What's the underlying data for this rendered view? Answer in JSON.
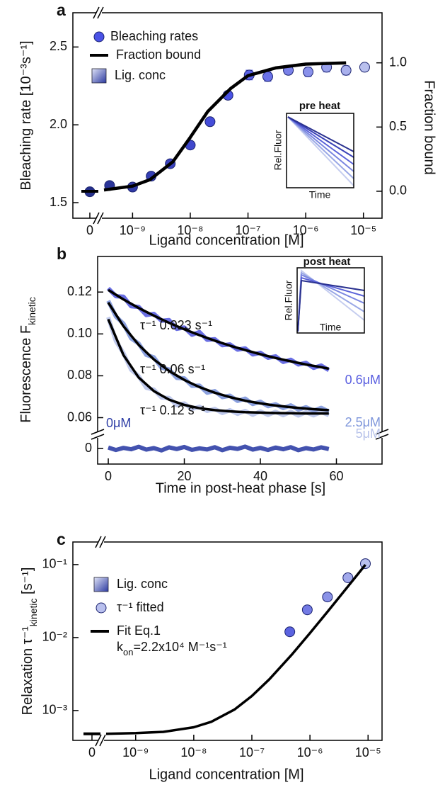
{
  "chart_data": [
    {
      "type": "scatter",
      "panel_label": "a",
      "xlog": true,
      "xlabel": "Ligand concentration [M]",
      "ylabel": [
        "Bleaching rate [10⁻³s⁻¹]"
      ],
      "y2label": "Fraction bound",
      "colorbar_label": "Lig. conc",
      "inset": {
        "title": "pre heat",
        "ylabel": "Rel.Fluor",
        "xlabel": "Time"
      },
      "xlim": [
        0,
        2.1e-05
      ],
      "xbreak": [
        0,
        3.2e-10
      ],
      "xticks": [
        0,
        {
          "value": 1e-09,
          "label": "10⁻⁹"
        },
        {
          "value": 1e-08,
          "label": "10⁻⁸"
        },
        {
          "value": 1e-07,
          "label": "10⁻⁷"
        },
        {
          "value": 1e-06,
          "label": "10⁻⁶"
        },
        {
          "value": 1e-05,
          "label": "10⁻⁵"
        }
      ],
      "ylim": [
        1.4,
        2.72
      ],
      "yticks": [
        1.5,
        {
          "value": 2,
          "label": "2.0"
        },
        2.5
      ],
      "y2lim": [
        -0.21,
        1.39
      ],
      "y2ticks": [
        {
          "value": 0,
          "label": "0.0"
        },
        0.5,
        {
          "value": 1,
          "label": "1.0"
        }
      ],
      "series": [
        {
          "name": "Bleaching rates",
          "type": "scatter",
          "color_scale": [
            "#26308c",
            "#4a52e6",
            "#b9c0ee"
          ],
          "x": [
            0,
            4e-10,
            1e-09,
            2.1e-09,
            4.5e-09,
            1e-08,
            2.2e-08,
            4.5e-08,
            1.05e-07,
            2.2e-07,
            5e-07,
            1.1e-06,
            2.3e-06,
            5e-06,
            1.05e-05
          ],
          "values": [
            1.57,
            1.61,
            1.6,
            1.67,
            1.75,
            1.87,
            2.02,
            2.19,
            2.32,
            2.31,
            2.35,
            2.34,
            2.37,
            2.35,
            2.37
          ],
          "errors": [
            0.02,
            0.015,
            0.015,
            0.01,
            0.01,
            0.01,
            0.01,
            0.01,
            0.03,
            0.03,
            0.025,
            0.03,
            0.03,
            0.03,
            0.02
          ]
        },
        {
          "name": "Fraction bound",
          "type": "line",
          "color": "#000000",
          "axis": "y2",
          "x": [
            0,
            3.2e-10,
            1e-09,
            2e-09,
            5e-09,
            1e-08,
            2e-08,
            5e-08,
            1e-07,
            3e-07,
            1e-06,
            5e-06
          ],
          "values": [
            0.0,
            0.01,
            0.04,
            0.09,
            0.23,
            0.42,
            0.62,
            0.8,
            0.9,
            0.96,
            0.99,
            1.0
          ]
        }
      ]
    },
    {
      "type": "line",
      "panel_label": "b",
      "xlabel": "Time in post-heat phase [s]",
      "ylabel": [
        "Fluorescence F",
        "kinetic"
      ],
      "inset": {
        "title": "post heat",
        "ylabel": "Rel.Fluor",
        "xlabel": "Time"
      },
      "annotations": [
        "τ⁻¹ 0.023 s⁻¹",
        "τ⁻¹ 0.06 s⁻¹",
        "τ⁻¹ 0.12 s⁻¹"
      ],
      "xlim": [
        -2.8,
        72
      ],
      "xticks": [
        0,
        20,
        40,
        60
      ],
      "ylim": [
        -0.0083,
        0.137
      ],
      "ybreak": [
        0.0053,
        0.0534
      ],
      "yticks": [
        0,
        0.06,
        0.08,
        {
          "value": 0.1,
          "label": "0.10"
        },
        0.12
      ],
      "series": [
        {
          "name": "0μM",
          "type": "trace",
          "color": "#2f3fa6",
          "x": [
            0,
            2,
            4,
            6,
            8,
            10,
            12,
            14,
            16,
            18,
            20,
            22,
            24,
            26,
            28,
            30,
            32,
            34,
            36,
            38,
            40,
            42,
            44,
            46,
            48,
            50,
            52,
            54,
            56,
            58
          ],
          "values": [
            0.0005,
            -0.0008,
            0.0003,
            -0.0004,
            0.0009,
            -0.0006,
            0.0002,
            -0.001,
            0.0006,
            -0.0003,
            0.0008,
            -0.0007,
            0.0001,
            -0.0005,
            0.0007,
            -0.0009,
            0.0004,
            -0.0002,
            0.001,
            -0.0006,
            0.0003,
            -0.0008,
            0.0005,
            -0.0004,
            0.0007,
            -0.0009,
            0.0002,
            -0.0005,
            0.0006,
            -0.0003
          ]
        },
        {
          "name": "0.6μM",
          "type": "trace",
          "color": "#5a5fe0",
          "x": [
            0,
            2,
            4,
            6,
            8,
            10,
            12,
            14,
            16,
            18,
            20,
            22,
            24,
            26,
            28,
            30,
            32,
            34,
            36,
            38,
            40,
            42,
            44,
            46,
            48,
            50,
            52,
            54,
            56,
            58
          ],
          "values": [
            0.1218,
            0.118,
            0.1178,
            0.1132,
            0.1129,
            0.109,
            0.1096,
            0.1063,
            0.1066,
            0.1024,
            0.1031,
            0.0996,
            0.1009,
            0.0972,
            0.0975,
            0.0946,
            0.095,
            0.0925,
            0.0931,
            0.0902,
            0.091,
            0.0886,
            0.0893,
            0.0866,
            0.0877,
            0.0854,
            0.0862,
            0.0838,
            0.0849,
            0.0827
          ]
        },
        {
          "name": "2.5μM",
          "type": "trace",
          "color": "#7f97db",
          "x": [
            0,
            2,
            4,
            6,
            8,
            10,
            12,
            14,
            16,
            18,
            20,
            22,
            24,
            26,
            28,
            30,
            32,
            34,
            36,
            38,
            40,
            42,
            44,
            46,
            48,
            50,
            52,
            54,
            56,
            58
          ],
          "values": [
            0.1158,
            0.1083,
            0.1049,
            0.0979,
            0.0954,
            0.09,
            0.0888,
            0.0839,
            0.083,
            0.079,
            0.0788,
            0.0752,
            0.0753,
            0.0719,
            0.0727,
            0.0698,
            0.0705,
            0.068,
            0.0691,
            0.0665,
            0.0676,
            0.0655,
            0.0664,
            0.0646,
            0.0659,
            0.0638,
            0.065,
            0.0633,
            0.0647,
            0.0629
          ]
        },
        {
          "name": "5μM",
          "type": "trace",
          "color": "#b8c3ea",
          "x": [
            0,
            2,
            4,
            6,
            8,
            10,
            12,
            14,
            16,
            18,
            20,
            22,
            24,
            26,
            28,
            30,
            32,
            34,
            36,
            38,
            40,
            42,
            44,
            46,
            48,
            50,
            52,
            54,
            56,
            58
          ],
          "values": [
            0.108,
            0.0966,
            0.0908,
            0.0829,
            0.0798,
            0.0743,
            0.0734,
            0.0696,
            0.0694,
            0.066,
            0.0668,
            0.0642,
            0.0652,
            0.0632,
            0.0642,
            0.0622,
            0.0636,
            0.0618,
            0.0632,
            0.0614,
            0.063,
            0.0613,
            0.0628,
            0.0612,
            0.0628,
            0.061,
            0.0626,
            0.0611,
            0.0627,
            0.0612
          ]
        },
        {
          "type": "line",
          "color": "#000000",
          "x": [
            0,
            4,
            8,
            12,
            16,
            20,
            24,
            28,
            32,
            36,
            40,
            44,
            48,
            52,
            56,
            58
          ],
          "values": [
            0.121,
            0.1165,
            0.1124,
            0.1087,
            0.1053,
            0.1022,
            0.0994,
            0.0968,
            0.0944,
            0.0923,
            0.0903,
            0.0885,
            0.0869,
            0.0854,
            0.0841,
            0.0834
          ]
        },
        {
          "type": "line",
          "color": "#000000",
          "x": [
            0,
            4,
            8,
            12,
            16,
            20,
            24,
            28,
            32,
            36,
            40,
            44,
            48,
            52,
            56,
            58
          ],
          "values": [
            0.115,
            0.1037,
            0.0948,
            0.0878,
            0.0823,
            0.078,
            0.0746,
            0.0719,
            0.0698,
            0.0681,
            0.0668,
            0.0658,
            0.065,
            0.0643,
            0.0638,
            0.0636
          ]
        },
        {
          "type": "line",
          "color": "#000000",
          "x": [
            0,
            4,
            8,
            12,
            16,
            20,
            24,
            28,
            32,
            36,
            40,
            44,
            48,
            52,
            56,
            58
          ],
          "values": [
            0.107,
            0.0899,
            0.0792,
            0.0727,
            0.0686,
            0.0661,
            0.0645,
            0.0636,
            0.063,
            0.0626,
            0.0624,
            0.0622,
            0.0621,
            0.062,
            0.062,
            0.062
          ]
        }
      ]
    },
    {
      "type": "scatter",
      "panel_label": "c",
      "xlog": true,
      "ylog": true,
      "xlabel": "Ligand concentration [M]",
      "ylabel": [
        "Relaxation τ⁻¹",
        "kinetic",
        " [s⁻¹]"
      ],
      "colorbar_label": "Lig. conc",
      "annotation": [
        "k",
        "on",
        "=2.2x10⁴ M⁻¹s⁻¹"
      ],
      "xlim": [
        0,
        1.74e-05
      ],
      "xbreak": [
        0,
        3.1e-10
      ],
      "xticks": [
        0,
        {
          "value": 1e-09,
          "label": "10⁻⁹"
        },
        {
          "value": 1e-08,
          "label": "10⁻⁸"
        },
        {
          "value": 1e-07,
          "label": "10⁻⁷"
        },
        {
          "value": 1e-06,
          "label": "10⁻⁶"
        },
        {
          "value": 1e-05,
          "label": "10⁻⁵"
        }
      ],
      "ylim": [
        0.00039,
        0.204
      ],
      "yticks": [
        {
          "value": 0.001,
          "label": "10⁻³"
        },
        {
          "value": 0.01,
          "label": "10⁻²"
        },
        {
          "value": 0.1,
          "label": "10⁻¹"
        }
      ],
      "series": [
        {
          "name": "τ⁻¹ fitted",
          "type": "scatter",
          "color_scale": [
            "#5b63e0",
            "#b9c0ee"
          ],
          "x": [
            4.5e-07,
            9e-07,
            2e-06,
            4.5e-06,
            9e-06
          ],
          "values": [
            0.012,
            0.024,
            0.036,
            0.066,
            0.103
          ]
        },
        {
          "name": "Fit Eq.1",
          "type": "line",
          "color": "#000000",
          "x": [
            0,
            3.1e-10,
            1e-09,
            3e-09,
            1e-08,
            2e-08,
            5e-08,
            1e-07,
            2e-07,
            5e-07,
            1e-06,
            2e-06,
            5e-06,
            9e-06
          ],
          "values": [
            0.00048,
            0.00048,
            0.00049,
            0.00051,
            0.00059,
            0.0007,
            0.00103,
            0.00158,
            0.00268,
            0.00598,
            0.0115,
            0.0225,
            0.0555,
            0.0995
          ]
        }
      ]
    }
  ]
}
